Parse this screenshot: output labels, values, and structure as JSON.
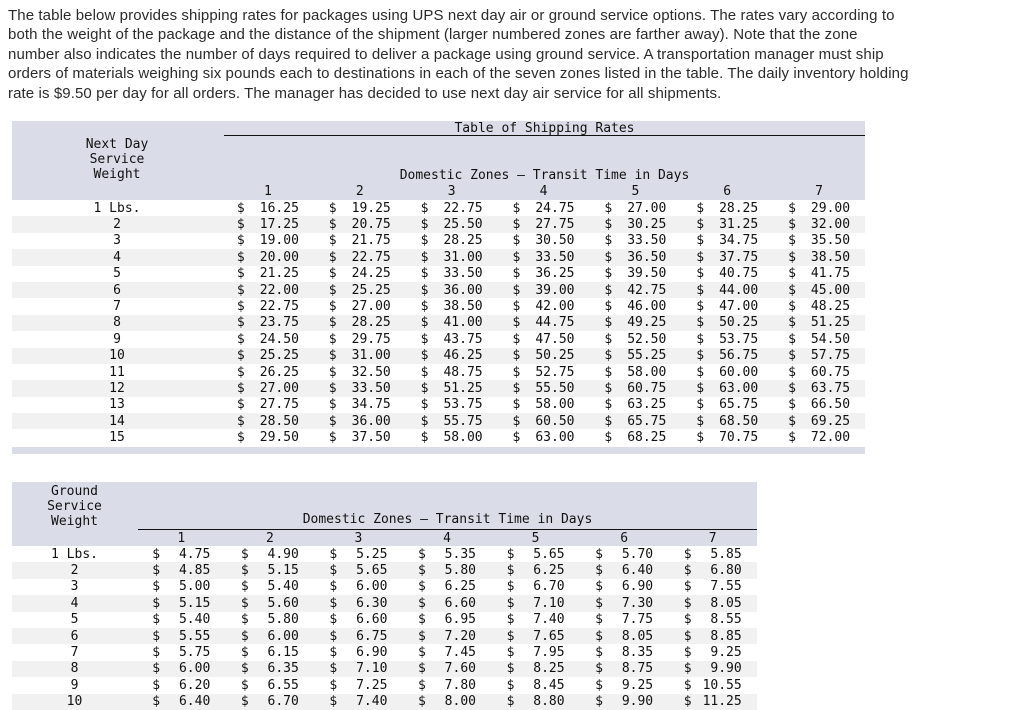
{
  "intro": {
    "lines": [
      "The table below provides shipping rates for packages using UPS next day air or ground service options. The rates vary according to",
      "both the weight of the package and the distance of the shipment (larger numbered zones are farther away). Note that the zone",
      "number also indicates the number of days required to deliver a package using ground service. A transportation manager must ship",
      "orders of materials weighing six pounds each to destinations in each of the seven zones listed in the table. The daily inventory holding",
      "rate is $9.50 per day for all orders. The manager has decided to use next day air service for all shipments."
    ]
  },
  "colors": {
    "header_bg": "#dadde7",
    "alt_row_bg": "#f1f1f1",
    "text": "#111111"
  },
  "chart_data": [
    {
      "type": "table",
      "title": "Table of Shipping Rates",
      "service": "Next Day",
      "weight_header": [
        "Next Day",
        "Service",
        "Weight"
      ],
      "zones_header": "Domestic Zones – Transit Time in Days",
      "zones": [
        "1",
        "2",
        "3",
        "4",
        "5",
        "6",
        "7"
      ],
      "currency": "$",
      "weight_unit_suffix": "Lbs.",
      "rows": [
        {
          "weight": "1 Lbs.",
          "rates": [
            "16.25",
            "19.25",
            "22.75",
            "24.75",
            "27.00",
            "28.25",
            "29.00"
          ]
        },
        {
          "weight": "2",
          "rates": [
            "17.25",
            "20.75",
            "25.50",
            "27.75",
            "30.25",
            "31.25",
            "32.00"
          ]
        },
        {
          "weight": "3",
          "rates": [
            "19.00",
            "21.75",
            "28.25",
            "30.50",
            "33.50",
            "34.75",
            "35.50"
          ]
        },
        {
          "weight": "4",
          "rates": [
            "20.00",
            "22.75",
            "31.00",
            "33.50",
            "36.50",
            "37.75",
            "38.50"
          ]
        },
        {
          "weight": "5",
          "rates": [
            "21.25",
            "24.25",
            "33.50",
            "36.25",
            "39.50",
            "40.75",
            "41.75"
          ]
        },
        {
          "weight": "6",
          "rates": [
            "22.00",
            "25.25",
            "36.00",
            "39.00",
            "42.75",
            "44.00",
            "45.00"
          ]
        },
        {
          "weight": "7",
          "rates": [
            "22.75",
            "27.00",
            "38.50",
            "42.00",
            "46.00",
            "47.00",
            "48.25"
          ]
        },
        {
          "weight": "8",
          "rates": [
            "23.75",
            "28.25",
            "41.00",
            "44.75",
            "49.25",
            "50.25",
            "51.25"
          ]
        },
        {
          "weight": "9",
          "rates": [
            "24.50",
            "29.75",
            "43.75",
            "47.50",
            "52.50",
            "53.75",
            "54.50"
          ]
        },
        {
          "weight": "10",
          "rates": [
            "25.25",
            "31.00",
            "46.25",
            "50.25",
            "55.25",
            "56.75",
            "57.75"
          ]
        },
        {
          "weight": "11",
          "rates": [
            "26.25",
            "32.50",
            "48.75",
            "52.75",
            "58.00",
            "60.00",
            "60.75"
          ]
        },
        {
          "weight": "12",
          "rates": [
            "27.00",
            "33.50",
            "51.25",
            "55.50",
            "60.75",
            "63.00",
            "63.75"
          ]
        },
        {
          "weight": "13",
          "rates": [
            "27.75",
            "34.75",
            "53.75",
            "58.00",
            "63.25",
            "65.75",
            "66.50"
          ]
        },
        {
          "weight": "14",
          "rates": [
            "28.50",
            "36.00",
            "55.75",
            "60.50",
            "65.75",
            "68.50",
            "69.25"
          ]
        },
        {
          "weight": "15",
          "rates": [
            "29.50",
            "37.50",
            "58.00",
            "63.00",
            "68.25",
            "70.75",
            "72.00"
          ]
        }
      ]
    },
    {
      "type": "table",
      "service": "Ground",
      "weight_header": [
        "Ground",
        "Service",
        "Weight"
      ],
      "zones_header": "Domestic Zones – Transit Time in Days",
      "zones": [
        "1",
        "2",
        "3",
        "4",
        "5",
        "6",
        "7"
      ],
      "currency": "$",
      "weight_unit_suffix": "Lbs.",
      "rows": [
        {
          "weight": "1 Lbs.",
          "rates": [
            "4.75",
            "4.90",
            "5.25",
            "5.35",
            "5.65",
            "5.70",
            "5.85"
          ]
        },
        {
          "weight": "2",
          "rates": [
            "4.85",
            "5.15",
            "5.65",
            "5.80",
            "6.25",
            "6.40",
            "6.80"
          ]
        },
        {
          "weight": "3",
          "rates": [
            "5.00",
            "5.40",
            "6.00",
            "6.25",
            "6.70",
            "6.90",
            "7.55"
          ]
        },
        {
          "weight": "4",
          "rates": [
            "5.15",
            "5.60",
            "6.30",
            "6.60",
            "7.10",
            "7.30",
            "8.05"
          ]
        },
        {
          "weight": "5",
          "rates": [
            "5.40",
            "5.80",
            "6.60",
            "6.95",
            "7.40",
            "7.75",
            "8.55"
          ]
        },
        {
          "weight": "6",
          "rates": [
            "5.55",
            "6.00",
            "6.75",
            "7.20",
            "7.65",
            "8.05",
            "8.85"
          ]
        },
        {
          "weight": "7",
          "rates": [
            "5.75",
            "6.15",
            "6.90",
            "7.45",
            "7.95",
            "8.35",
            "9.25"
          ]
        },
        {
          "weight": "8",
          "rates": [
            "6.00",
            "6.35",
            "7.10",
            "7.60",
            "8.25",
            "8.75",
            "9.90"
          ]
        },
        {
          "weight": "9",
          "rates": [
            "6.20",
            "6.55",
            "7.25",
            "7.80",
            "8.45",
            "9.25",
            "10.55"
          ]
        },
        {
          "weight": "10",
          "rates": [
            "6.40",
            "6.70",
            "7.40",
            "8.00",
            "8.80",
            "9.90",
            "11.25"
          ]
        }
      ]
    }
  ]
}
